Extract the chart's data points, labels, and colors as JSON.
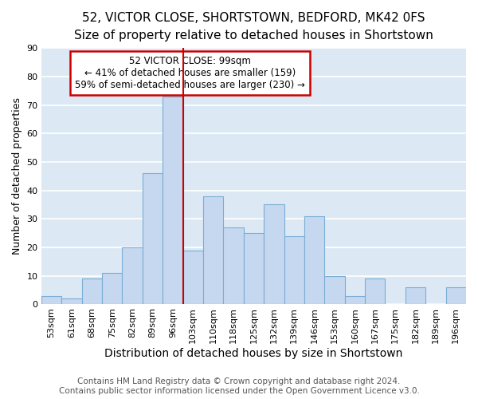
{
  "title_line1": "52, VICTOR CLOSE, SHORTSTOWN, BEDFORD, MK42 0FS",
  "title_line2": "Size of property relative to detached houses in Shortstown",
  "xlabel": "Distribution of detached houses by size in Shortstown",
  "ylabel": "Number of detached properties",
  "footer_line1": "Contains HM Land Registry data © Crown copyright and database right 2024.",
  "footer_line2": "Contains public sector information licensed under the Open Government Licence v3.0.",
  "annotation_line1": "52 VICTOR CLOSE: 99sqm",
  "annotation_line2": "← 41% of detached houses are smaller (159)",
  "annotation_line3": "59% of semi-detached houses are larger (230) →",
  "bins": [
    "53sqm",
    "61sqm",
    "68sqm",
    "75sqm",
    "82sqm",
    "89sqm",
    "96sqm",
    "103sqm",
    "110sqm",
    "118sqm",
    "125sqm",
    "132sqm",
    "139sqm",
    "146sqm",
    "153sqm",
    "160sqm",
    "167sqm",
    "175sqm",
    "182sqm",
    "189sqm",
    "196sqm"
  ],
  "bar_heights": [
    3,
    2,
    9,
    11,
    20,
    46,
    73,
    19,
    38,
    27,
    25,
    35,
    24,
    31,
    10,
    3,
    9,
    0,
    6,
    0,
    6
  ],
  "bar_color": "#c5d8f0",
  "bar_edge_color": "#7aadd4",
  "vline_x_index": 6,
  "vline_color": "#cc0000",
  "ylim": [
    0,
    90
  ],
  "yticks": [
    0,
    10,
    20,
    30,
    40,
    50,
    60,
    70,
    80,
    90
  ],
  "background_color": "#dce9f5",
  "grid_color": "white",
  "title_fontsize": 11,
  "subtitle_fontsize": 9.5,
  "ylabel_fontsize": 9,
  "xlabel_fontsize": 10,
  "tick_fontsize": 8,
  "annotation_fontsize": 8.5,
  "footer_fontsize": 7.5
}
